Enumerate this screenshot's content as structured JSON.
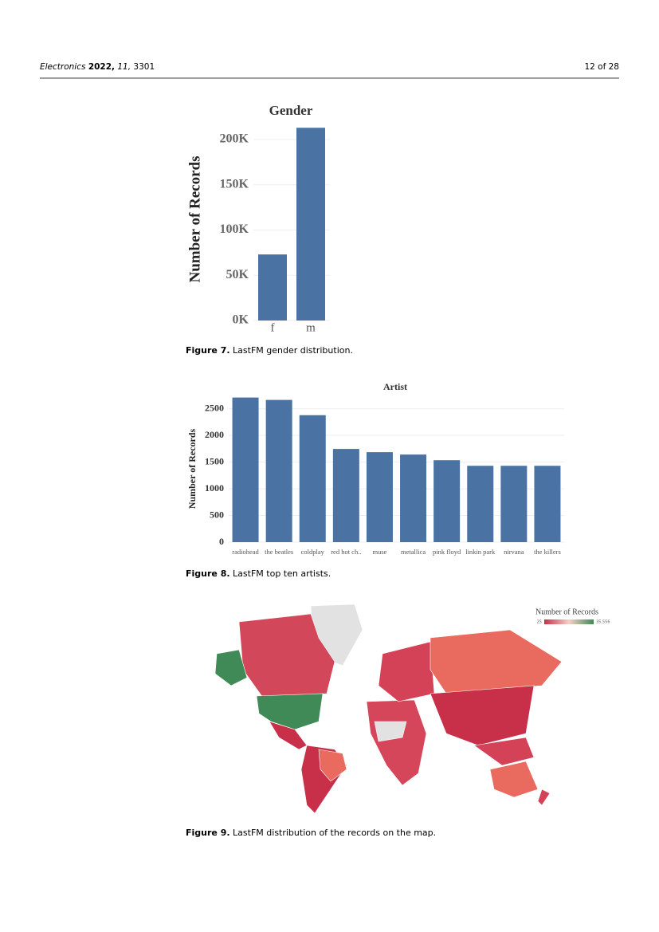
{
  "header": {
    "journal": "Electronics",
    "year": "2022,",
    "volume": "11,",
    "article": "3301",
    "page": "12 of 28"
  },
  "chart_data": [
    {
      "type": "bar",
      "title": "Gender",
      "y_label": "Number of Records",
      "categories": [
        "f",
        "m"
      ],
      "values": [
        73000,
        213000
      ],
      "color": "#4a72a3",
      "ylim": [
        0,
        215000
      ],
      "yticks": [
        {
          "value": 0,
          "label": "0K"
        },
        {
          "value": 50000,
          "label": "50K"
        },
        {
          "value": 100000,
          "label": "100K"
        },
        {
          "value": 150000,
          "label": "150K"
        },
        {
          "value": 200000,
          "label": "200K"
        }
      ],
      "grid": true
    },
    {
      "type": "bar",
      "title": "Artist",
      "y_label": "Number of Records",
      "categories": [
        "radiohead",
        "the beatles",
        "coldplay",
        "red hot ch..",
        "muse",
        "metallica",
        "pink floyd",
        "linkin park",
        "nirvana",
        "the killers"
      ],
      "values": [
        2711,
        2666,
        2380,
        1747,
        1687,
        1642,
        1536,
        1431,
        1431,
        1431
      ],
      "color": "#4a72a3",
      "ylim": [
        0,
        2750
      ],
      "yticks": [
        0,
        500,
        1000,
        1500,
        2000,
        2500
      ],
      "grid": true
    }
  ],
  "captions": [
    {
      "label": "Figure 7.",
      "text": "LastFM gender distribution."
    },
    {
      "label": "Figure 8.",
      "text": "LastFM top ten artists."
    },
    {
      "label": "Figure 9.",
      "text": "LastFM distribution of the records on the map."
    }
  ],
  "map": {
    "legend_title": "Number of Records",
    "min": "25",
    "max": "35,556"
  }
}
